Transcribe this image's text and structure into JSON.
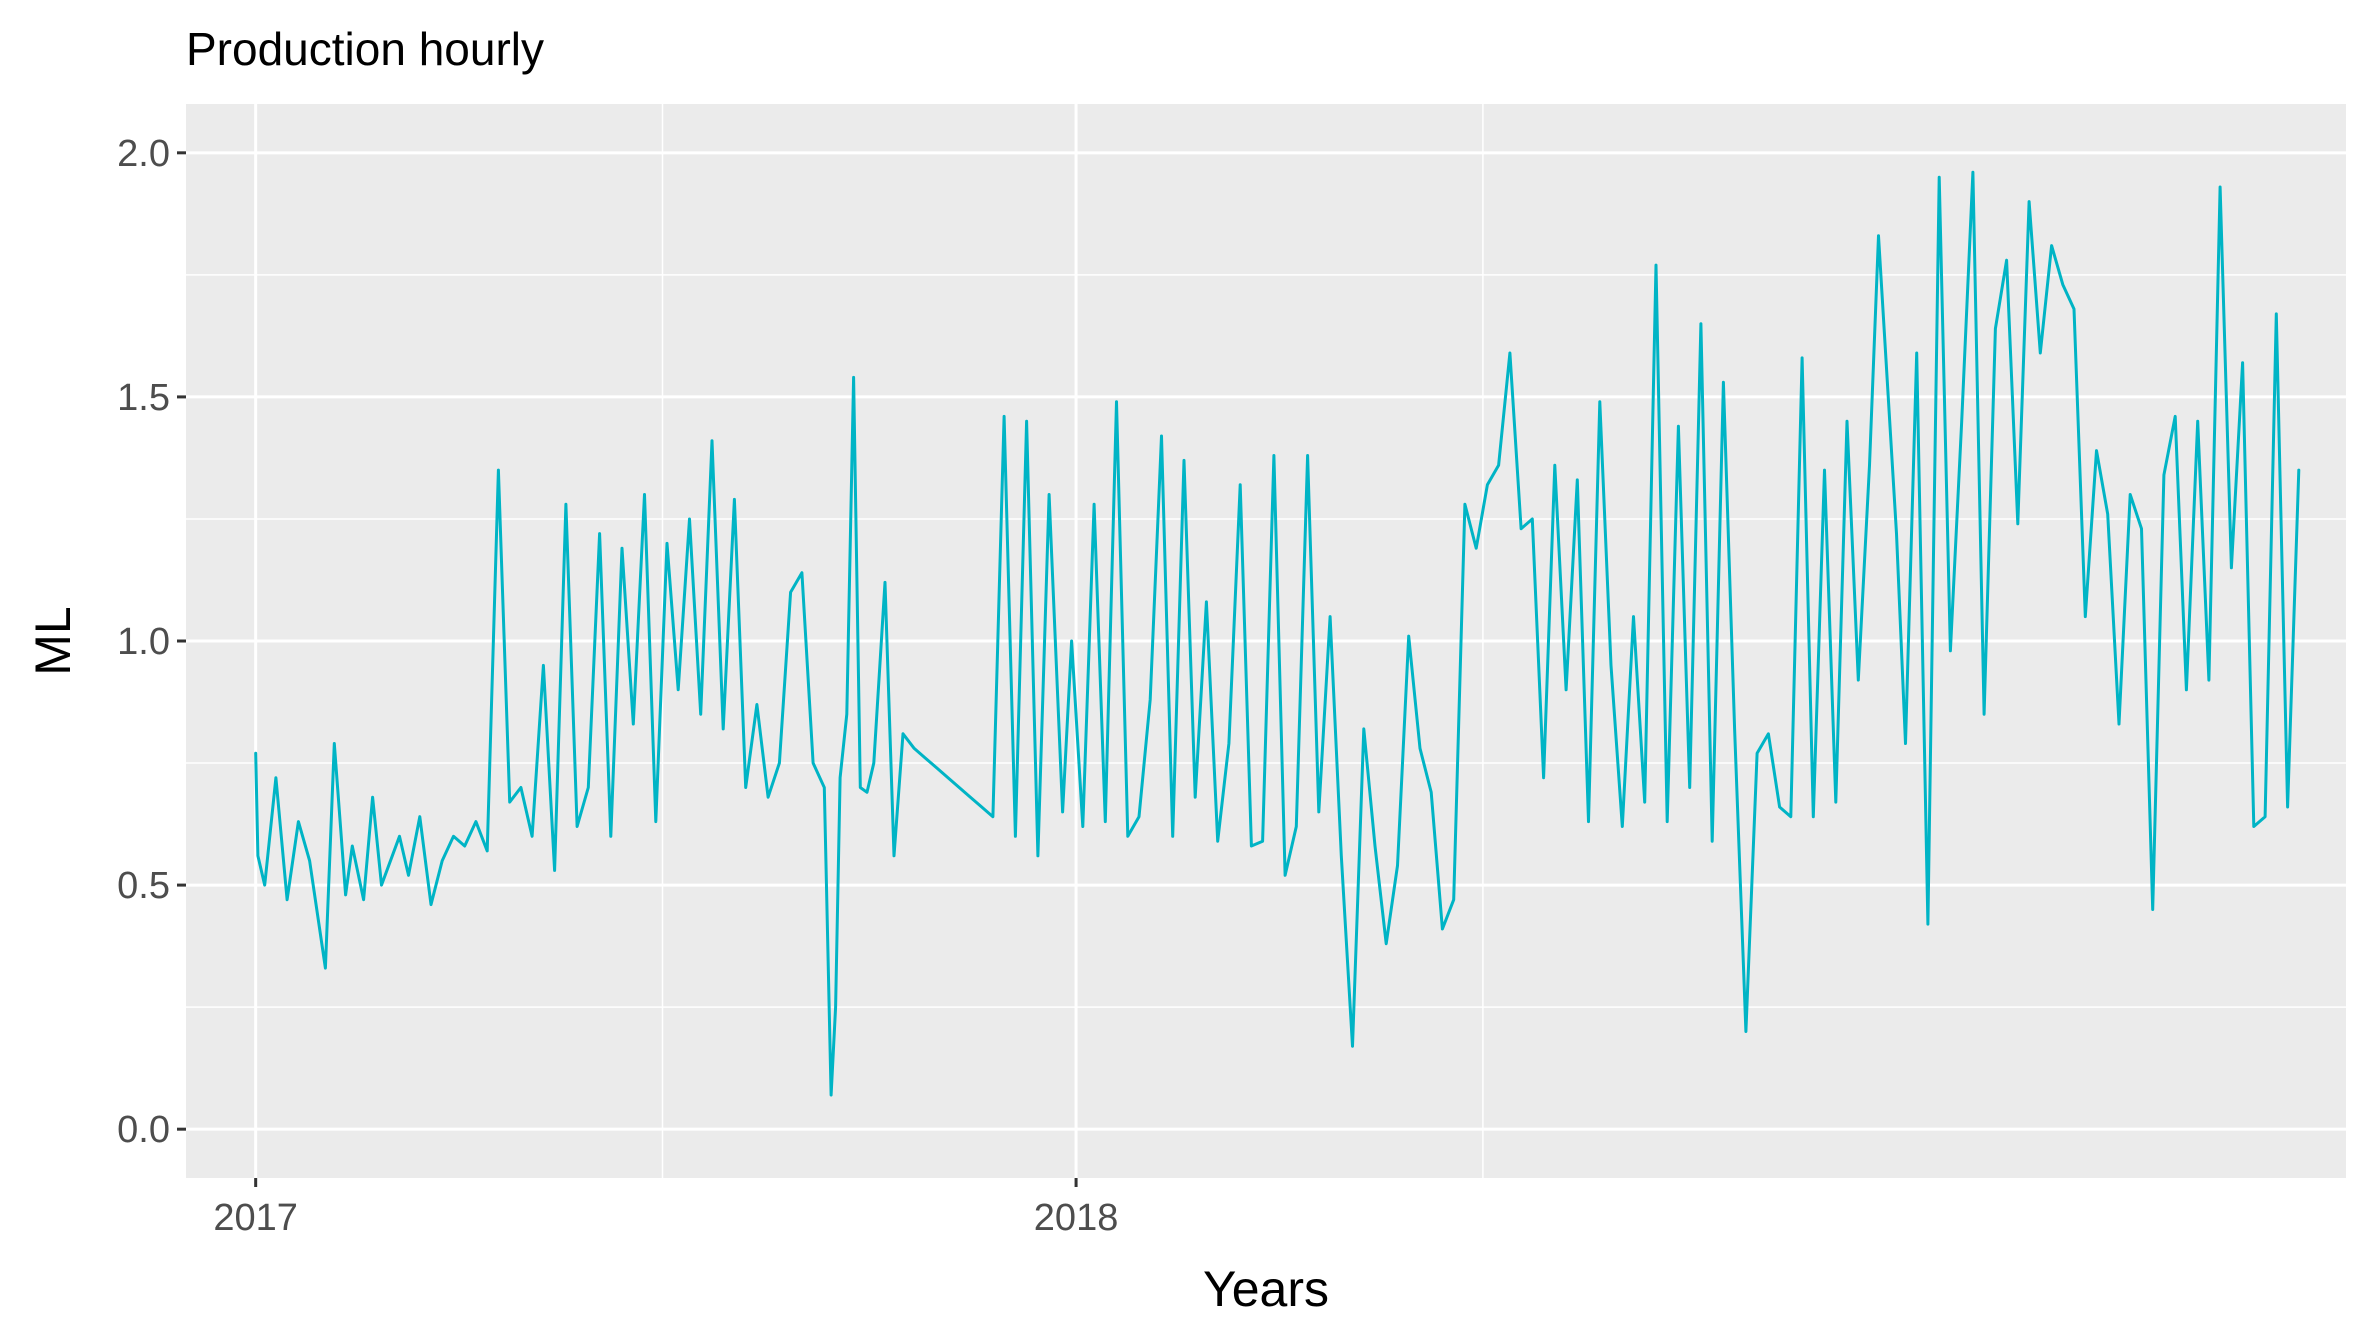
{
  "chart_data": {
    "type": "line",
    "title": "Production hourly",
    "xlabel": "Years",
    "ylabel": "ML",
    "ylim": [
      -0.1,
      2.1
    ],
    "xlim": [
      "2016-12-01",
      "2019-07-20"
    ],
    "yticks": [
      0.0,
      0.5,
      1.0,
      1.5,
      2.0
    ],
    "ytick_labels": [
      "0.0",
      "0.5",
      "1.0",
      "1.5",
      "2.0"
    ],
    "xticks": [
      "2017-01-01",
      "2018-01-01"
    ],
    "xtick_labels": [
      "2017",
      "2018"
    ],
    "x_minor_gridlines": [
      "2017-07-01",
      "2018-07-01"
    ],
    "y_minor_gridlines": [
      0.25,
      0.75,
      1.25,
      1.75
    ],
    "grid": true,
    "legend": "none",
    "colors": {
      "series": "#00b4c5",
      "panel": "#ebebeb",
      "grid": "#ffffff"
    },
    "series": [
      {
        "x": [
          "2017-01-01",
          "2017-01-02",
          "2017-01-05",
          "2017-01-10",
          "2017-01-15",
          "2017-01-20",
          "2017-01-25",
          "2017-02-01",
          "2017-02-05",
          "2017-02-10",
          "2017-02-13",
          "2017-02-18",
          "2017-02-22",
          "2017-02-26",
          "2017-03-02",
          "2017-03-06",
          "2017-03-10",
          "2017-03-15",
          "2017-03-20",
          "2017-03-25",
          "2017-03-30",
          "2017-04-04",
          "2017-04-09",
          "2017-04-14",
          "2017-04-19",
          "2017-04-24",
          "2017-04-29",
          "2017-05-04",
          "2017-05-09",
          "2017-05-14",
          "2017-05-19",
          "2017-05-24",
          "2017-05-29",
          "2017-06-03",
          "2017-06-08",
          "2017-06-13",
          "2017-06-18",
          "2017-06-23",
          "2017-06-28",
          "2017-07-03",
          "2017-07-08",
          "2017-07-13",
          "2017-07-18",
          "2017-07-23",
          "2017-07-28",
          "2017-08-02",
          "2017-08-07",
          "2017-08-12",
          "2017-08-17",
          "2017-08-22",
          "2017-08-27",
          "2017-09-01",
          "2017-09-06",
          "2017-09-11",
          "2017-09-14",
          "2017-09-16",
          "2017-09-18",
          "2017-09-21",
          "2017-09-24",
          "2017-09-27",
          "2017-09-30",
          "2017-10-03",
          "2017-10-08",
          "2017-10-12",
          "2017-10-16",
          "2017-10-21",
          "2017-10-26",
          "2017-10-31",
          "2017-11-05",
          "2017-11-10",
          "2017-11-15",
          "2017-11-20",
          "2017-11-25",
          "2017-11-30",
          "2017-12-05",
          "2017-12-10",
          "2017-12-15",
          "2017-12-20",
          "2017-12-26",
          "2017-12-30",
          "2018-01-04",
          "2018-01-09",
          "2018-01-14",
          "2018-01-19",
          "2018-01-24",
          "2018-01-29",
          "2018-02-03",
          "2018-02-08",
          "2018-02-13",
          "2018-02-18",
          "2018-02-23",
          "2018-02-28",
          "2018-03-05",
          "2018-03-10",
          "2018-03-15",
          "2018-03-20",
          "2018-03-25",
          "2018-03-30",
          "2018-04-04",
          "2018-04-09",
          "2018-04-14",
          "2018-04-19",
          "2018-04-24",
          "2018-04-29",
          "2018-05-04",
          "2018-05-09",
          "2018-05-14",
          "2018-05-19",
          "2018-05-24",
          "2018-05-29",
          "2018-06-03",
          "2018-06-08",
          "2018-06-13",
          "2018-06-18",
          "2018-06-23",
          "2018-06-28",
          "2018-07-03",
          "2018-07-08",
          "2018-07-13",
          "2018-07-18",
          "2018-07-23",
          "2018-07-28",
          "2018-08-02",
          "2018-08-07",
          "2018-08-12",
          "2018-08-17",
          "2018-08-22",
          "2018-08-27",
          "2018-09-01",
          "2018-09-06",
          "2018-09-11",
          "2018-09-16",
          "2018-09-21",
          "2018-09-26",
          "2018-10-01",
          "2018-10-06",
          "2018-10-11",
          "2018-10-16",
          "2018-10-21",
          "2018-10-26",
          "2018-10-31",
          "2018-11-05",
          "2018-11-10",
          "2018-11-15",
          "2018-11-20",
          "2018-11-25",
          "2018-11-30",
          "2018-12-05",
          "2018-12-10",
          "2018-12-15",
          "2018-12-20",
          "2018-12-24",
          "2019-01-01",
          "2019-01-05",
          "2019-01-10",
          "2019-01-15",
          "2019-01-20",
          "2019-01-25",
          "2019-01-30",
          "2019-02-04",
          "2019-02-09",
          "2019-02-14",
          "2019-02-19",
          "2019-02-24",
          "2019-03-01",
          "2019-03-06",
          "2019-03-11",
          "2019-03-16",
          "2019-03-21",
          "2019-03-26",
          "2019-03-31",
          "2019-04-05",
          "2019-04-10",
          "2019-04-15",
          "2019-04-20",
          "2019-04-25",
          "2019-04-30",
          "2019-05-05",
          "2019-05-10",
          "2019-05-15",
          "2019-05-20",
          "2019-05-25",
          "2019-05-30",
          "2019-06-04",
          "2019-06-09",
          "2019-06-14",
          "2019-06-19",
          "2019-06-24",
          "2019-06-29"
        ],
        "y": [
          0.77,
          0.56,
          0.5,
          0.72,
          0.47,
          0.63,
          0.55,
          0.33,
          0.79,
          0.48,
          0.58,
          0.47,
          0.68,
          0.5,
          0.55,
          0.6,
          0.52,
          0.64,
          0.46,
          0.55,
          0.6,
          0.58,
          0.63,
          0.57,
          1.35,
          0.67,
          0.7,
          0.6,
          0.95,
          0.53,
          1.28,
          0.62,
          0.7,
          1.22,
          0.6,
          1.19,
          0.83,
          1.3,
          0.63,
          1.2,
          0.9,
          1.25,
          0.85,
          1.41,
          0.82,
          1.29,
          0.7,
          0.87,
          0.68,
          0.75,
          1.1,
          1.14,
          0.75,
          0.7,
          0.07,
          0.25,
          0.72,
          0.85,
          1.54,
          0.7,
          0.69,
          0.75,
          1.12,
          0.56,
          0.81,
          0.78,
          0.76,
          0.74,
          0.72,
          0.7,
          0.68,
          0.66,
          0.64,
          1.46,
          0.6,
          1.45,
          0.56,
          1.3,
          0.65,
          1.0,
          0.62,
          1.28,
          0.63,
          1.49,
          0.6,
          0.64,
          0.88,
          1.42,
          0.6,
          1.37,
          0.68,
          1.08,
          0.59,
          0.79,
          1.32,
          0.58,
          0.59,
          1.38,
          0.52,
          0.62,
          1.38,
          0.65,
          1.05,
          0.56,
          0.17,
          0.82,
          0.58,
          0.38,
          0.54,
          1.01,
          0.78,
          0.69,
          0.41,
          0.47,
          1.28,
          1.19,
          1.32,
          1.36,
          1.59,
          1.23,
          1.25,
          0.72,
          1.36,
          0.9,
          1.33,
          0.63,
          1.49,
          0.95,
          0.62,
          1.05,
          0.67,
          1.77,
          0.63,
          1.44,
          0.7,
          1.65,
          0.59,
          1.53,
          0.82,
          0.2,
          0.77,
          0.81,
          0.66,
          0.64,
          1.58,
          0.64,
          1.35,
          0.67,
          1.45,
          0.92,
          1.36,
          1.83,
          1.22,
          0.79,
          1.59,
          0.42,
          1.95,
          0.98,
          1.45,
          1.96,
          0.85,
          1.64,
          1.78,
          1.24,
          1.9,
          1.59,
          1.81,
          1.73,
          1.68,
          1.05,
          1.39,
          1.26,
          0.83,
          1.3,
          1.23,
          0.45,
          1.34,
          1.46,
          0.9,
          1.45,
          0.92,
          1.93,
          1.15,
          1.57,
          0.62,
          0.64,
          1.67,
          0.66,
          1.35
        ]
      }
    ]
  }
}
